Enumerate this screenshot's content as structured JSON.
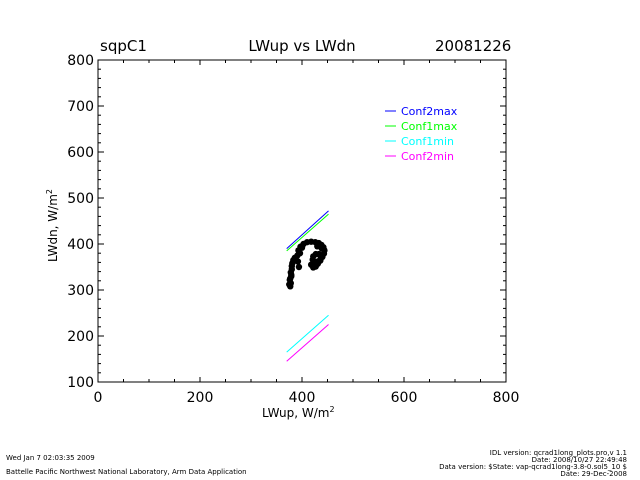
{
  "header": {
    "site": "sqpC1",
    "title": "LWup vs LWdn",
    "date": "20081226"
  },
  "footer": {
    "run_time": "Wed Jan  7 02:03:35 2009",
    "institution": "Battelle Pacific Northwest National Laboratory, Arm Data Application",
    "idl_version": "IDL version: qcrad1long_plots.pro,v 1.1",
    "idl_date": "Date: 2008/10/27 22:49:48",
    "data_version": "Data version: $State: vap-qcrad1long-3.8-0.sol5_10 $",
    "data_date": "Date: 29-Dec-2008"
  },
  "chart_data": {
    "type": "scatter",
    "title": "LWup vs LWdn",
    "xlabel": "LWup, W/m",
    "xlabel_sup": "2",
    "ylabel": "LWdn, W/m",
    "ylabel_sup": "2",
    "xlim": [
      0,
      800
    ],
    "ylim": [
      100,
      800
    ],
    "x_ticks": [
      0,
      200,
      400,
      600,
      800
    ],
    "y_ticks": [
      100,
      200,
      300,
      400,
      500,
      600,
      700,
      800
    ],
    "grid": false,
    "legend_position": "top-right",
    "series": [
      {
        "name": "Conf2max",
        "color": "#0000ff",
        "kind": "line",
        "points": [
          [
            370,
            390
          ],
          [
            452,
            472
          ]
        ]
      },
      {
        "name": "Conf1max",
        "color": "#00ff00",
        "kind": "line",
        "points": [
          [
            370,
            385
          ],
          [
            452,
            465
          ]
        ]
      },
      {
        "name": "Conf1min",
        "color": "#00ffff",
        "kind": "line",
        "points": [
          [
            370,
            165
          ],
          [
            452,
            245
          ]
        ]
      },
      {
        "name": "Conf2min",
        "color": "#ff00ff",
        "kind": "line",
        "points": [
          [
            370,
            145
          ],
          [
            452,
            225
          ]
        ]
      }
    ],
    "scatter_points": [
      [
        377,
        308
      ],
      [
        378,
        315
      ],
      [
        376,
        322
      ],
      [
        379,
        330
      ],
      [
        378,
        338
      ],
      [
        380,
        345
      ],
      [
        380,
        352
      ],
      [
        381,
        358
      ],
      [
        383,
        365
      ],
      [
        386,
        370
      ],
      [
        384,
        364
      ],
      [
        375,
        312
      ],
      [
        377,
        325
      ],
      [
        379,
        333
      ],
      [
        394,
        350
      ],
      [
        392,
        362
      ],
      [
        391,
        375
      ],
      [
        393,
        386
      ],
      [
        397,
        394
      ],
      [
        403,
        400
      ],
      [
        410,
        404
      ],
      [
        418,
        405
      ],
      [
        426,
        404
      ],
      [
        433,
        402
      ],
      [
        438,
        398
      ],
      [
        442,
        393
      ],
      [
        444,
        386
      ],
      [
        443,
        379
      ],
      [
        440,
        372
      ],
      [
        436,
        366
      ],
      [
        431,
        362
      ],
      [
        425,
        361
      ],
      [
        421,
        366
      ],
      [
        422,
        373
      ],
      [
        427,
        378
      ],
      [
        433,
        378
      ],
      [
        437,
        372
      ],
      [
        436,
        364
      ],
      [
        431,
        357
      ],
      [
        427,
        351
      ],
      [
        422,
        349
      ],
      [
        418,
        355
      ],
      [
        439,
        390
      ],
      [
        430,
        395
      ],
      [
        396,
        380
      ],
      [
        400,
        392
      ]
    ]
  }
}
